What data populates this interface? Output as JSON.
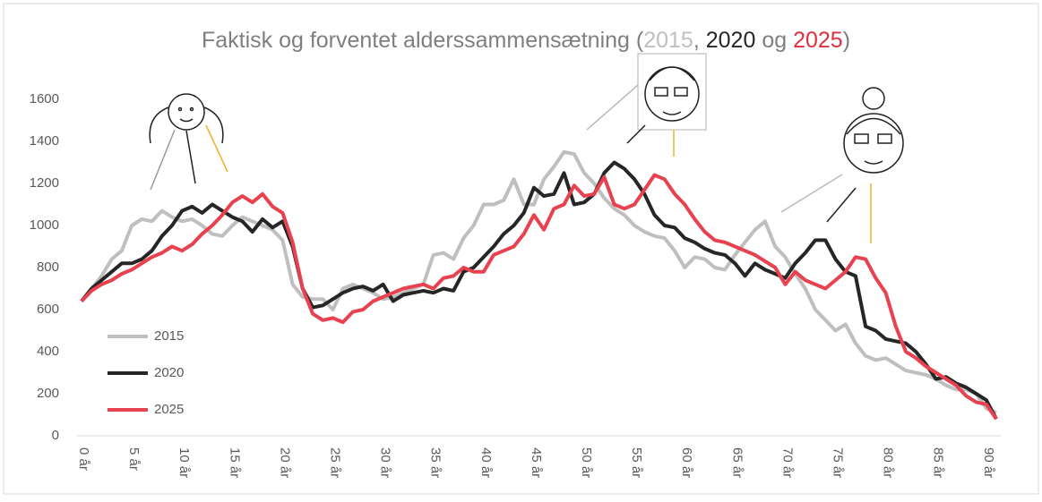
{
  "chart_data": {
    "type": "line",
    "title_parts": [
      {
        "text": "Faktisk og forventet alderssammensætning (",
        "color": "#7f7f7f"
      },
      {
        "text": "2015",
        "color": "#bfbfbf"
      },
      {
        "text": ", ",
        "color": "#7f7f7f"
      },
      {
        "text": "2020",
        "color": "#262626"
      },
      {
        "text": " og ",
        "color": "#7f7f7f"
      },
      {
        "text": "2025",
        "color": "#e0303f"
      },
      {
        "text": ")",
        "color": "#7f7f7f"
      }
    ],
    "categories": [
      "0 år",
      null,
      null,
      null,
      null,
      "5 år",
      null,
      null,
      null,
      null,
      "10 år",
      null,
      null,
      null,
      null,
      "15 år",
      null,
      null,
      null,
      null,
      "20 år",
      null,
      null,
      null,
      null,
      "25 år",
      null,
      null,
      null,
      null,
      "30 år",
      null,
      null,
      null,
      null,
      "35 år",
      null,
      null,
      null,
      null,
      "40 år",
      null,
      null,
      null,
      null,
      "45 år",
      null,
      null,
      null,
      null,
      "50 år",
      null,
      null,
      null,
      null,
      "55 år",
      null,
      null,
      null,
      null,
      "60 år",
      null,
      null,
      null,
      null,
      "65 år",
      null,
      null,
      null,
      null,
      "70 år",
      null,
      null,
      null,
      null,
      "75 år",
      null,
      null,
      null,
      null,
      "80 år",
      null,
      null,
      null,
      null,
      "85 år",
      null,
      null,
      null,
      null,
      "90 år",
      null
    ],
    "series": [
      {
        "name": "2015",
        "color": "#bfbfbf",
        "values": [
          640,
          700,
          760,
          840,
          880,
          1000,
          1030,
          1020,
          1070,
          1040,
          1020,
          1030,
          1000,
          960,
          950,
          1000,
          1040,
          1020,
          1000,
          980,
          930,
          720,
          660,
          650,
          650,
          600,
          700,
          720,
          700,
          680,
          650,
          660,
          680,
          700,
          720,
          860,
          870,
          840,
          940,
          1000,
          1100,
          1100,
          1120,
          1220,
          1100,
          1100,
          1220,
          1280,
          1350,
          1340,
          1250,
          1200,
          1130,
          1080,
          1050,
          1000,
          970,
          950,
          940,
          880,
          800,
          850,
          840,
          800,
          790,
          860,
          920,
          980,
          1020,
          900,
          850,
          770,
          700,
          600,
          550,
          500,
          530,
          440,
          380,
          360,
          370,
          340,
          310,
          300,
          290,
          270,
          240,
          220,
          220,
          200,
          130,
          110
        ]
      },
      {
        "name": "2020",
        "color": "#262626",
        "values": [
          640,
          700,
          740,
          780,
          820,
          820,
          840,
          880,
          950,
          1000,
          1070,
          1090,
          1060,
          1100,
          1070,
          1040,
          1020,
          970,
          1030,
          990,
          1020,
          900,
          700,
          610,
          620,
          650,
          680,
          700,
          710,
          690,
          720,
          640,
          670,
          680,
          690,
          680,
          700,
          690,
          780,
          800,
          850,
          900,
          960,
          1000,
          1060,
          1180,
          1140,
          1150,
          1250,
          1100,
          1110,
          1150,
          1250,
          1300,
          1270,
          1220,
          1150,
          1050,
          1000,
          990,
          940,
          920,
          890,
          870,
          860,
          820,
          760,
          820,
          790,
          770,
          750,
          820,
          870,
          930,
          930,
          840,
          780,
          760,
          520,
          500,
          460,
          450,
          440,
          400,
          340,
          270,
          280,
          250,
          230,
          200,
          170,
          80
        ]
      },
      {
        "name": "2025",
        "color": "#e8414f",
        "values": [
          640,
          690,
          720,
          740,
          770,
          790,
          820,
          850,
          870,
          900,
          880,
          910,
          960,
          1000,
          1050,
          1110,
          1140,
          1110,
          1150,
          1090,
          1060,
          920,
          700,
          580,
          550,
          560,
          540,
          590,
          600,
          640,
          660,
          680,
          700,
          710,
          720,
          700,
          750,
          760,
          800,
          780,
          780,
          860,
          880,
          900,
          960,
          1050,
          980,
          1080,
          1100,
          1190,
          1140,
          1150,
          1230,
          1100,
          1080,
          1100,
          1170,
          1240,
          1220,
          1150,
          1100,
          1030,
          970,
          930,
          920,
          900,
          880,
          860,
          830,
          800,
          720,
          780,
          740,
          720,
          700,
          740,
          780,
          850,
          840,
          750,
          680,
          520,
          400,
          370,
          330,
          300,
          270,
          240,
          190,
          160,
          150,
          80
        ]
      }
    ],
    "ylim": [
      0,
      1600
    ],
    "yticks": [
      0,
      200,
      400,
      600,
      800,
      1000,
      1200,
      1400,
      1600
    ],
    "grid": false,
    "legend": "lower left"
  }
}
